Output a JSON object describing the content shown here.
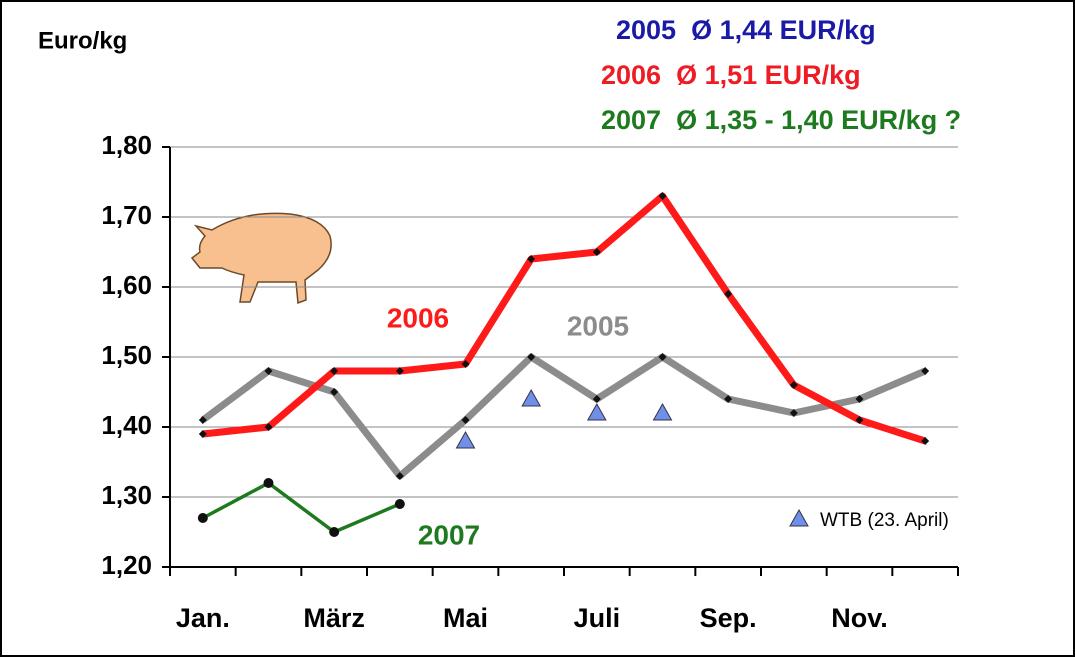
{
  "chart_data": {
    "type": "line",
    "y_label": "Euro/kg",
    "annotations": [
      {
        "text": "2005  Ø 1,44 EUR/kg",
        "color": "#1a1aa6"
      },
      {
        "text": "2006  Ø 1,51 EUR/kg",
        "color": "#ee1c25"
      },
      {
        "text": "2007  Ø 1,35 - 1,40 EUR/kg ?",
        "color": "#1e7a1e"
      }
    ],
    "categories": [
      "Jan.",
      null,
      "März",
      null,
      "Mai",
      null,
      "Juli",
      null,
      "Sep.",
      null,
      "Nov.",
      null
    ],
    "series": [
      {
        "name": "2005",
        "color": "#8c8c8c",
        "values": [
          1.41,
          1.48,
          1.45,
          1.33,
          1.41,
          1.5,
          1.44,
          1.5,
          1.44,
          1.42,
          1.44,
          1.48
        ]
      },
      {
        "name": "2006",
        "color": "#ff1a1a",
        "values": [
          1.39,
          1.4,
          1.48,
          1.48,
          1.49,
          1.64,
          1.65,
          1.73,
          1.59,
          1.46,
          1.41,
          1.38
        ]
      },
      {
        "name": "2007",
        "color": "#1e7a1e",
        "values": [
          1.27,
          1.32,
          1.25,
          1.29,
          null,
          null,
          null,
          null,
          null,
          null,
          null,
          null
        ]
      },
      {
        "name": "WTB (23. April)",
        "color": "#6f8fe8",
        "values": [
          null,
          null,
          null,
          null,
          1.38,
          1.44,
          1.42,
          1.42,
          null,
          null,
          null,
          null
        ]
      }
    ],
    "ylim": [
      1.2,
      1.8
    ],
    "yticks": [
      {
        "value": 1.2,
        "label": "1,20"
      },
      {
        "value": 1.3,
        "label": "1,30"
      },
      {
        "value": 1.4,
        "label": "1,40"
      },
      {
        "value": 1.5,
        "label": "1,50"
      },
      {
        "value": 1.6,
        "label": "1,60"
      },
      {
        "value": 1.7,
        "label": "1,70"
      },
      {
        "value": 1.8,
        "label": "1,80"
      }
    ],
    "grid": true
  }
}
